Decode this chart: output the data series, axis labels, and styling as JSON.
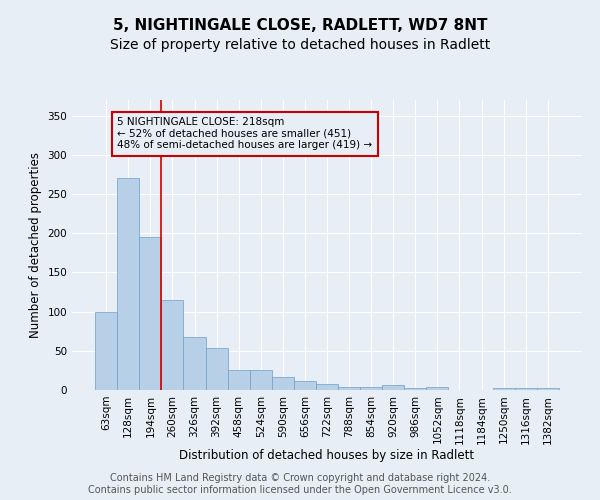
{
  "title": "5, NIGHTINGALE CLOSE, RADLETT, WD7 8NT",
  "subtitle": "Size of property relative to detached houses in Radlett",
  "xlabel": "Distribution of detached houses by size in Radlett",
  "ylabel": "Number of detached properties",
  "categories": [
    "63sqm",
    "128sqm",
    "194sqm",
    "260sqm",
    "326sqm",
    "392sqm",
    "458sqm",
    "524sqm",
    "590sqm",
    "656sqm",
    "722sqm",
    "788sqm",
    "854sqm",
    "920sqm",
    "986sqm",
    "1052sqm",
    "1118sqm",
    "1184sqm",
    "1250sqm",
    "1316sqm",
    "1382sqm"
  ],
  "values": [
    100,
    271,
    195,
    115,
    68,
    54,
    26,
    26,
    17,
    11,
    8,
    4,
    4,
    6,
    2,
    4,
    0,
    0,
    3,
    3,
    2
  ],
  "bar_color": "#b8cfe8",
  "bar_edge_color": "#6f9fc8",
  "background_color": "#e8eef6",
  "grid_color": "#ffffff",
  "annotation_box_text": "5 NIGHTINGALE CLOSE: 218sqm\n← 52% of detached houses are smaller (451)\n48% of semi-detached houses are larger (419) →",
  "annotation_box_color": "#cc0000",
  "red_line_x": 2.5,
  "ylim": [
    0,
    370
  ],
  "yticks": [
    0,
    50,
    100,
    150,
    200,
    250,
    300,
    350
  ],
  "footnote": "Contains HM Land Registry data © Crown copyright and database right 2024.\nContains public sector information licensed under the Open Government Licence v3.0.",
  "title_fontsize": 11,
  "subtitle_fontsize": 10,
  "label_fontsize": 8.5,
  "tick_fontsize": 7.5,
  "footnote_fontsize": 7
}
